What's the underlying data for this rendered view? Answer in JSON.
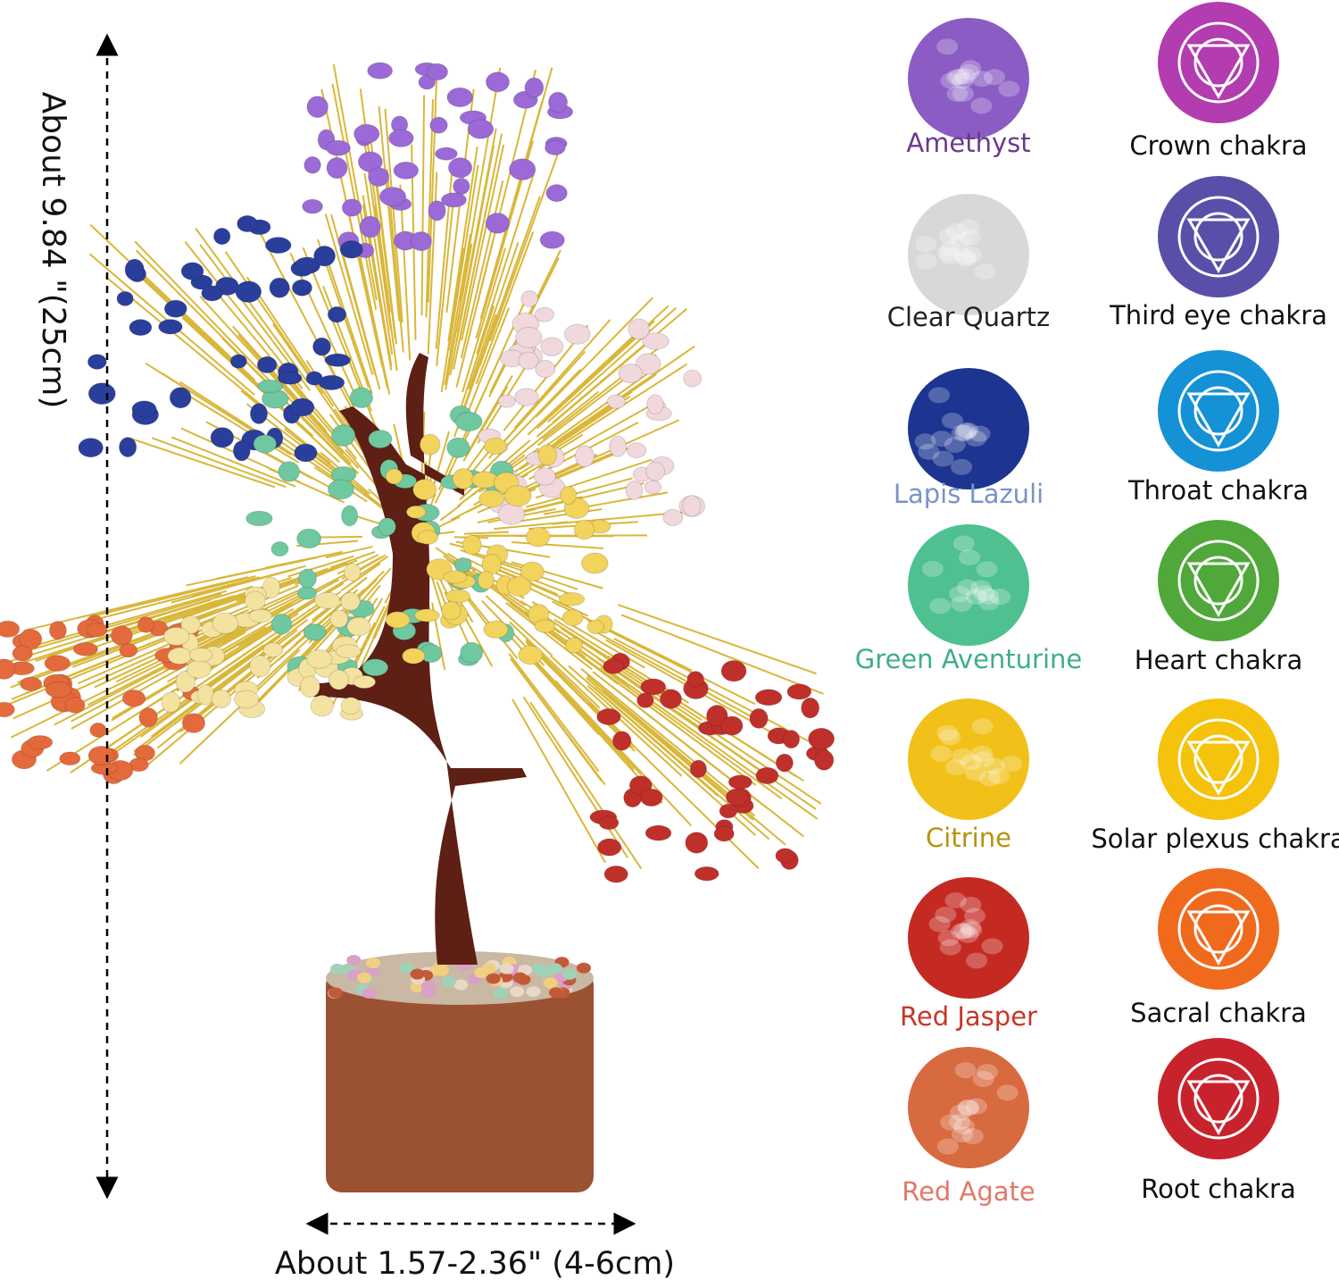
{
  "dimensions": {
    "height": "About 9.84 \"(25cm)",
    "width": "About 1.57-2.36\" (4-6cm)"
  },
  "stones": [
    {
      "name": "Amethyst",
      "chakra": "Crown chakra"
    },
    {
      "name": "Clear Quartz",
      "chakra": "Third eye chakra"
    },
    {
      "name": "Lapis Lazuli",
      "chakra": "Throat chakra"
    },
    {
      "name": "Green Aventurine",
      "chakra": "Heart chakra"
    },
    {
      "name": "Citrine",
      "chakra": "Solar plexus chakra"
    },
    {
      "name": "Red Jasper",
      "chakra": "Sacral chakra"
    },
    {
      "name": "Red Agate",
      "chakra": "Root chakra"
    }
  ]
}
